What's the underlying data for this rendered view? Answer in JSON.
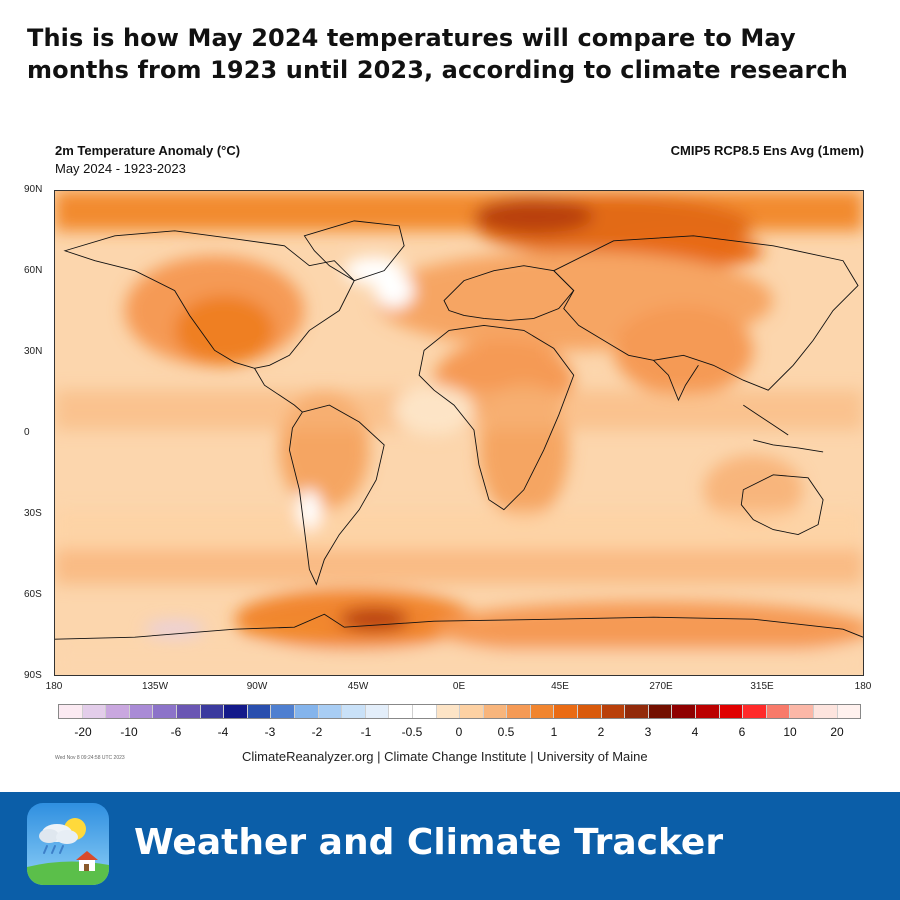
{
  "headline": "This is how May 2024 temperatures will compare to May months from 1923 until 2023, according to climate research",
  "map": {
    "title": "2m Temperature Anomaly (°C)",
    "subtitle": "May 2024 - 1923-2023",
    "model": "CMIP5 RCP8.5 Ens Avg (1mem)",
    "lat_ticks": [
      "90N",
      "60N",
      "30N",
      "0",
      "30S",
      "60S",
      "90S"
    ],
    "lon_ticks": [
      "180",
      "135W",
      "90W",
      "45W",
      "0E",
      "45E",
      "270E",
      "315E",
      "180"
    ]
  },
  "colorbar": {
    "labels": [
      "-20",
      "-10",
      "-6",
      "-4",
      "-3",
      "-2",
      "-1",
      "-0.5",
      "0",
      "0.5",
      "1",
      "2",
      "3",
      "4",
      "6",
      "10",
      "20"
    ],
    "colors": [
      "#fbeaf2",
      "#e3cdea",
      "#c9a7df",
      "#a98bd6",
      "#8c73c9",
      "#6a56b3",
      "#3b3a9e",
      "#141a8a",
      "#2a4fae",
      "#4f7fd0",
      "#84b4ec",
      "#a8cdf4",
      "#c9e1f8",
      "#e3eefa",
      "#ffffff",
      "#ffffff",
      "#fde4c6",
      "#fdd1a3",
      "#f8b57c",
      "#f59a55",
      "#f1852f",
      "#ea6b14",
      "#d95a0c",
      "#b9400a",
      "#922a0a",
      "#731000",
      "#8f0000",
      "#bb0000",
      "#e00000",
      "#ff2a2a",
      "#f87a6a",
      "#fbb7a7",
      "#fde4de",
      "#fff1ee"
    ]
  },
  "timestamp": "Wed Nov 8 09:24:58 UTC 2023",
  "credit": "ClimateReanalyzer.org | Climate Change Institute | University of Maine",
  "footer": {
    "app_name": "Weather and Climate Tracker",
    "icon": "weather-app-icon",
    "background": "#0b5ea8"
  }
}
